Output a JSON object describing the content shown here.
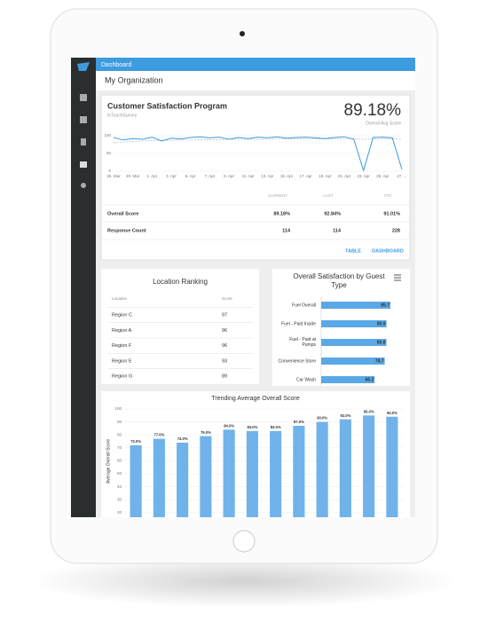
{
  "topbar": {
    "title": "Dashboard"
  },
  "org": {
    "title": "My Organization"
  },
  "program": {
    "title": "Customer Satisfaction Program",
    "subtitle": "InTouchSurvey",
    "score": "89.18%",
    "score_label": "Overall Avg Score",
    "chart": {
      "type": "line",
      "ylim": [
        0,
        100
      ],
      "yticks": [
        0,
        50,
        100
      ],
      "xtick_labels": [
        "26. Mar",
        "30. Mar",
        "1. Apr",
        "3. Apr",
        "5. Apr",
        "7. Apr",
        "9. Apr",
        "11. Apr",
        "13. Apr",
        "15. Apr",
        "17. Apr",
        "19. Apr",
        "21. Apr",
        "23. Apr",
        "25. Apr",
        "27. ..."
      ],
      "series": [
        {
          "color": "#3d9be0",
          "dash": false,
          "values": [
            95,
            88,
            92,
            90,
            96,
            85,
            93,
            91,
            95,
            97,
            94,
            96,
            90,
            95,
            92,
            96,
            94,
            97,
            93,
            95,
            96,
            94,
            92,
            95,
            97,
            90,
            2,
            95,
            96,
            94,
            5
          ]
        },
        {
          "color": "#b5b5b5",
          "dash": true,
          "values": [
            80,
            82,
            84,
            85,
            86,
            87,
            87,
            88,
            88,
            89,
            89,
            89,
            90,
            90,
            90,
            90,
            90,
            91,
            91,
            91,
            91,
            91,
            91,
            91,
            91,
            92,
            90,
            91,
            91,
            91,
            90
          ]
        }
      ]
    },
    "table": {
      "columns": [
        "CURRENT",
        "LAST",
        "YTD"
      ],
      "rows": [
        [
          "Overall Score",
          "89.18%",
          "92.84%",
          "91.01%"
        ],
        [
          "Response Count",
          "114",
          "114",
          "228"
        ]
      ]
    },
    "buttons": [
      "TABLE",
      "DASHBOARD"
    ]
  },
  "location_ranking": {
    "title": "Location Ranking",
    "columns": [
      "Location",
      "Score"
    ],
    "rows": [
      [
        "Region C",
        "97"
      ],
      [
        "Region A",
        "96"
      ],
      [
        "Region F",
        "96"
      ],
      [
        "Region E",
        "93"
      ],
      [
        "Region G",
        "89"
      ]
    ]
  },
  "guest_chart": {
    "type": "barh",
    "title": [
      "Overall Satisfaction by Guest",
      "Type"
    ],
    "categories": [
      "Fuel Overall",
      "Fuel - Paid Inside",
      "Fuel - Paid at Pumps",
      "Convenience Store",
      "Car Wash"
    ],
    "values": [
      85.7,
      80.9,
      80.8,
      78.7,
      66.2
    ],
    "xlim": [
      0,
      100
    ],
    "color": "#5aa9e6"
  },
  "trend_chart": {
    "type": "bar",
    "title": "Trending Average Overall Score",
    "ylabel": "Average Overall Score",
    "values": [
      72,
      77,
      74,
      79,
      84,
      83,
      83,
      87,
      90,
      92,
      95,
      94
    ],
    "value_labels": [
      "72.0%",
      "77.0%",
      "74.0%",
      "79.0%",
      "84.0%",
      "83.0%",
      "83.0%",
      "87.0%",
      "90.0%",
      "92.0%",
      "95.0%",
      "94.0%"
    ],
    "ylim": [
      0,
      100
    ],
    "yticks": [
      20,
      30,
      40,
      50,
      60,
      70,
      80,
      90,
      100
    ],
    "grid": true,
    "color": "#6fb3ea"
  }
}
